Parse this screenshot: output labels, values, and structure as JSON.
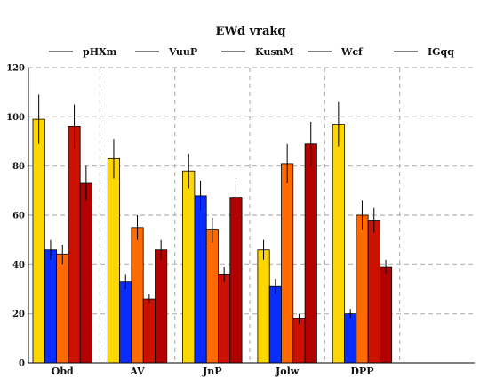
{
  "chart_data": {
    "type": "bar",
    "title": "EWd vrakq",
    "xlabel": "",
    "ylabel": "",
    "ylim": [
      0,
      120
    ],
    "yticks": [
      0,
      20,
      40,
      60,
      80,
      100,
      120
    ],
    "grid": true,
    "legend_position": "top",
    "categories": [
      "Obd",
      "AV",
      "JnP",
      "Jolw",
      "DPP"
    ],
    "series": [
      {
        "name": "pHXm",
        "color": "#FFD700",
        "values": [
          99,
          83,
          78,
          46,
          97
        ],
        "errors": [
          10,
          8,
          7,
          4,
          9
        ]
      },
      {
        "name": "VuuP",
        "color": "#0A2DFF",
        "values": [
          46,
          33,
          68,
          31,
          20
        ],
        "errors": [
          4,
          3,
          6,
          3,
          2
        ]
      },
      {
        "name": "KusnM",
        "color": "#FF6A00",
        "values": [
          44,
          55,
          54,
          81,
          60
        ],
        "errors": [
          4,
          5,
          5,
          8,
          6
        ]
      },
      {
        "name": "Wcf",
        "color": "#CC1100",
        "values": [
          96,
          26,
          36,
          18,
          58
        ],
        "errors": [
          9,
          2,
          3,
          2,
          5
        ]
      },
      {
        "name": "IGqq",
        "color": "#B30000",
        "values": [
          73,
          46,
          67,
          89,
          39
        ],
        "errors": [
          7,
          4,
          7,
          9,
          3
        ]
      }
    ]
  }
}
